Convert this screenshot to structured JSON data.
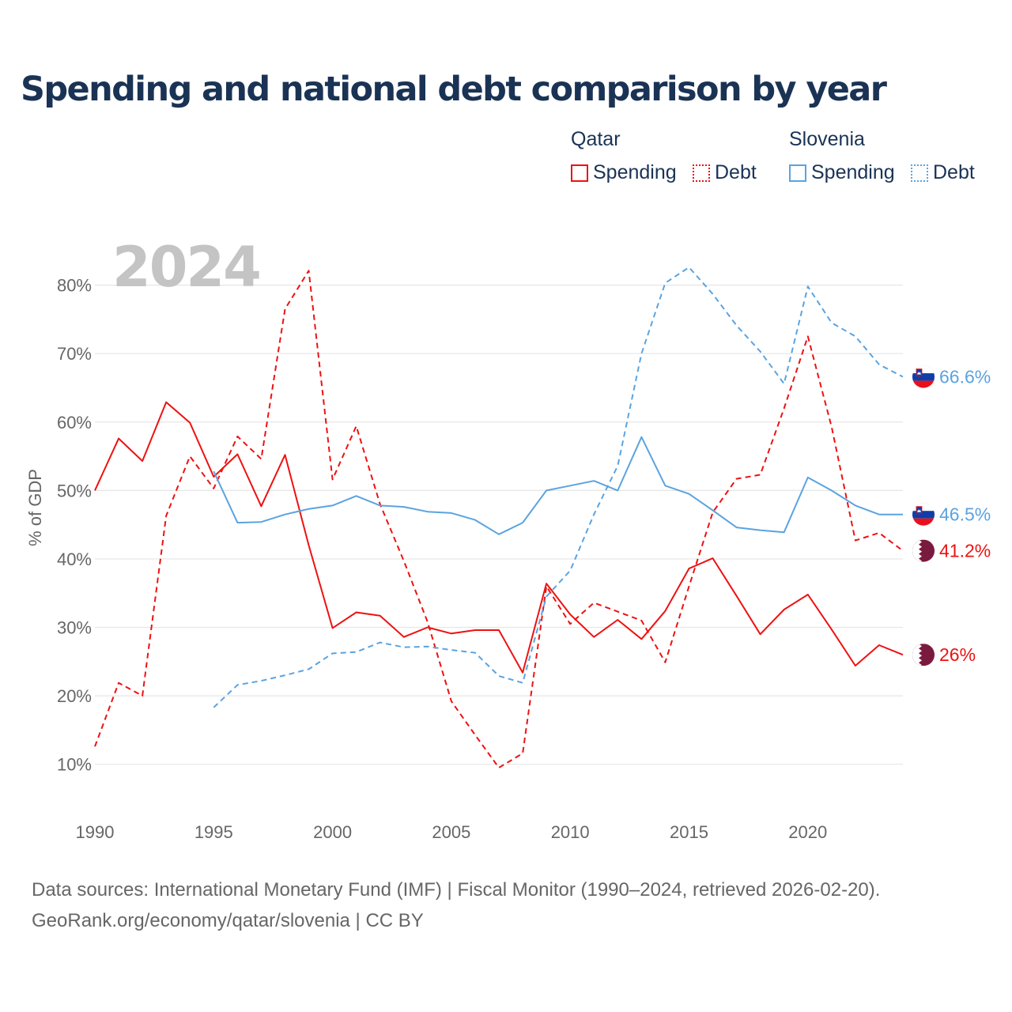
{
  "title": "Spending and national debt comparison by year",
  "year_label": "2024",
  "legend": {
    "groups": [
      {
        "country": "Qatar",
        "items": [
          {
            "label": "Spending",
            "style": "solid"
          },
          {
            "label": "Debt",
            "style": "dotted"
          }
        ],
        "color": "#ee1111"
      },
      {
        "country": "Slovenia",
        "items": [
          {
            "label": "Spending",
            "style": "solid"
          },
          {
            "label": "Debt",
            "style": "dotted"
          }
        ],
        "color": "#5ba3e0"
      }
    ]
  },
  "source": {
    "line1": "Data sources: International Monetary Fund (IMF) | Fiscal Monitor (1990–2024, retrieved 2026-02-20).",
    "line2": "GeoRank.org/economy/qatar/slovenia | CC BY"
  },
  "chart_data": {
    "type": "line",
    "title": "Spending and national debt comparison by year",
    "xlabel": "",
    "ylabel": "% of GDP",
    "xlim": [
      1990,
      2024
    ],
    "ylim": [
      5,
      87
    ],
    "x_ticks": [
      1990,
      1995,
      2000,
      2005,
      2010,
      2015,
      2020
    ],
    "y_ticks": [
      10,
      20,
      30,
      40,
      50,
      60,
      70,
      80
    ],
    "y_tick_labels": [
      "10%",
      "20%",
      "30%",
      "40%",
      "50%",
      "60%",
      "70%",
      "80%"
    ],
    "grid": true,
    "series": [
      {
        "name": "Qatar Spending",
        "country": "Qatar",
        "measure": "Spending",
        "color": "#ee1111",
        "dash": "solid",
        "flag": "qatar-flag-icon",
        "end_label": "26%",
        "x": [
          1990,
          1991,
          1992,
          1993,
          1994,
          1995,
          1996,
          1997,
          1998,
          1999,
          2000,
          2001,
          2002,
          2003,
          2004,
          2005,
          2006,
          2007,
          2008,
          2009,
          2010,
          2011,
          2012,
          2013,
          2014,
          2015,
          2016,
          2017,
          2018,
          2019,
          2020,
          2021,
          2022,
          2023,
          2024
        ],
        "values": [
          50.0,
          57.6,
          54.3,
          62.9,
          59.9,
          52.0,
          55.3,
          47.7,
          55.2,
          42.0,
          29.9,
          32.2,
          31.7,
          28.6,
          30.0,
          29.1,
          29.6,
          29.6,
          23.4,
          36.4,
          31.9,
          28.6,
          31.1,
          28.3,
          32.4,
          38.6,
          40.1,
          34.6,
          29.0,
          32.6,
          34.8,
          29.7,
          24.4,
          27.4,
          26.0
        ]
      },
      {
        "name": "Qatar Debt",
        "country": "Qatar",
        "measure": "Debt",
        "color": "#ee1111",
        "dash": "dashed",
        "flag": "qatar-flag-icon",
        "end_label": "41.2%",
        "x": [
          1990,
          1991,
          1992,
          1993,
          1994,
          1995,
          1996,
          1997,
          1998,
          1999,
          2000,
          2001,
          2002,
          2003,
          2004,
          2005,
          2006,
          2007,
          2008,
          2009,
          2010,
          2011,
          2012,
          2013,
          2014,
          2015,
          2016,
          2017,
          2018,
          2019,
          2020,
          2021,
          2022,
          2023,
          2024
        ],
        "values": [
          12.6,
          21.9,
          20.0,
          46.3,
          55.0,
          50.3,
          57.9,
          54.6,
          76.5,
          82.1,
          51.6,
          59.4,
          48.0,
          39.7,
          30.8,
          19.2,
          14.3,
          9.5,
          11.6,
          36.0,
          30.5,
          33.6,
          32.3,
          31.0,
          24.9,
          36.0,
          46.8,
          51.7,
          52.3,
          62.0,
          72.5,
          59.3,
          42.7,
          43.8,
          41.2
        ]
      },
      {
        "name": "Slovenia Spending",
        "country": "Slovenia",
        "measure": "Spending",
        "color": "#5ba3e0",
        "dash": "solid",
        "flag": "slovenia-flag-icon",
        "end_label": "46.5%",
        "x": [
          1995,
          1996,
          1997,
          1998,
          1999,
          2000,
          2001,
          2002,
          2003,
          2004,
          2005,
          2006,
          2007,
          2008,
          2009,
          2010,
          2011,
          2012,
          2013,
          2014,
          2015,
          2016,
          2017,
          2018,
          2019,
          2020,
          2021,
          2022,
          2023,
          2024
        ],
        "values": [
          52.8,
          45.3,
          45.4,
          46.5,
          47.3,
          47.8,
          49.2,
          47.8,
          47.6,
          46.9,
          46.7,
          45.7,
          43.6,
          45.3,
          50.0,
          50.7,
          51.4,
          50.0,
          57.8,
          50.7,
          49.5,
          47.1,
          44.6,
          44.2,
          43.9,
          51.9,
          50.0,
          47.8,
          46.5,
          46.5
        ]
      },
      {
        "name": "Slovenia Debt",
        "country": "Slovenia",
        "measure": "Debt",
        "color": "#5ba3e0",
        "dash": "dashed",
        "flag": "slovenia-flag-icon",
        "end_label": "66.6%",
        "x": [
          1995,
          1996,
          1997,
          1998,
          1999,
          2000,
          2001,
          2002,
          2003,
          2004,
          2005,
          2006,
          2007,
          2008,
          2009,
          2010,
          2011,
          2012,
          2013,
          2014,
          2015,
          2016,
          2017,
          2018,
          2019,
          2020,
          2021,
          2022,
          2023,
          2024
        ],
        "values": [
          18.3,
          21.6,
          22.2,
          23.0,
          23.9,
          26.2,
          26.4,
          27.8,
          27.1,
          27.2,
          26.7,
          26.3,
          22.9,
          21.9,
          34.5,
          38.3,
          46.5,
          53.6,
          70.0,
          80.3,
          82.6,
          78.7,
          74.1,
          70.3,
          65.6,
          79.8,
          74.5,
          72.5,
          68.4,
          66.6
        ]
      }
    ]
  }
}
